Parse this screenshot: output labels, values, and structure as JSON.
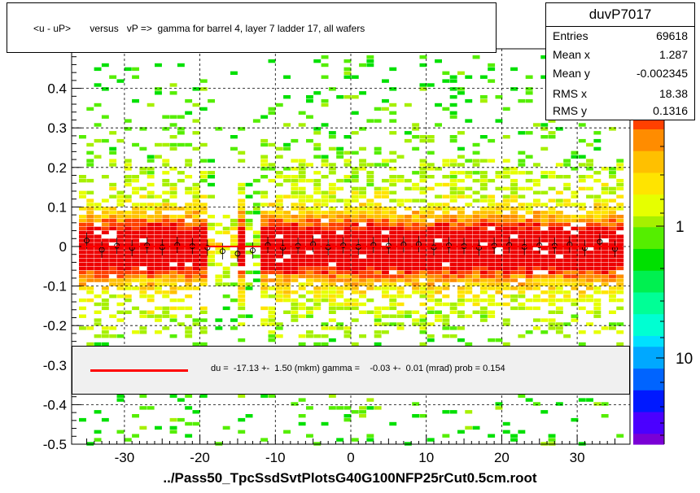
{
  "title": "<u - uP>       versus   vP =>  gamma for barrel 4, layer 7 ladder 17, all wafers",
  "stats": {
    "name": "duvP7017",
    "rows": [
      {
        "label": "Entries",
        "value": "69618"
      },
      {
        "label": "Mean x",
        "value": "1.287"
      },
      {
        "label": "Mean y",
        "value": "-0.002345"
      },
      {
        "label": "RMS x",
        "value": "18.38"
      },
      {
        "label": "RMS y",
        "value": "0.1316"
      }
    ]
  },
  "fit": {
    "text": "du =  -17.13 +-  1.50 (mkm) gamma =    -0.03 +-  0.01 (mrad) prob = 0.154",
    "line_color": "#ff0000"
  },
  "footer": "../Pass50_TpcSsdSvtPlotsG40G100NFP25rCut0.5cm.root",
  "chart_data": {
    "type": "heatmap",
    "xlim": [
      -37,
      37
    ],
    "ylim": [
      -0.5,
      0.5
    ],
    "x_ticks": [
      "-30",
      "-20",
      "-10",
      "0",
      "10",
      "20",
      "30"
    ],
    "x_tick_values": [
      -30,
      -20,
      -10,
      0,
      10,
      20,
      30
    ],
    "y_ticks": [
      "-0.5",
      "-0.4",
      "-0.3",
      "-0.2",
      "-0.1",
      "0",
      "0.1",
      "0.2",
      "0.3",
      "0.4"
    ],
    "y_tick_values": [
      -0.5,
      -0.4,
      -0.3,
      -0.2,
      -0.1,
      0,
      0.1,
      0.2,
      0.3,
      0.4
    ],
    "grid": true,
    "colorbar_labels": [
      "1",
      "10"
    ],
    "colorbar_label_values": [
      1,
      10
    ],
    "profile_points": {
      "x": [
        -35,
        -33,
        -31,
        -29,
        -27,
        -25,
        -23,
        -21,
        -19,
        -17,
        -15,
        -13,
        -11,
        -9,
        -7,
        -5,
        -3,
        -1,
        1,
        3,
        5,
        7,
        9,
        11,
        13,
        15,
        17,
        19,
        21,
        23,
        25,
        27,
        29,
        31,
        33,
        35
      ],
      "y": [
        0.015,
        -0.008,
        0.002,
        -0.004,
        0.003,
        -0.002,
        0.004,
        0.001,
        -0.003,
        -0.012,
        -0.018,
        -0.01,
        0.004,
        -0.003,
        0.002,
        0.006,
        -0.002,
        0.003,
        -0.001,
        0.004,
        0.002,
        0.005,
        0.006,
        -0.002,
        0.003,
        0.001,
        -0.003,
        0.002,
        0.004,
        -0.001,
        0.003,
        0.002,
        0.005,
        -0.004,
        0.012,
        -0.006
      ]
    },
    "fit_line": {
      "x": [
        -36,
        36
      ],
      "y": [
        0.0,
        0.0
      ]
    }
  }
}
